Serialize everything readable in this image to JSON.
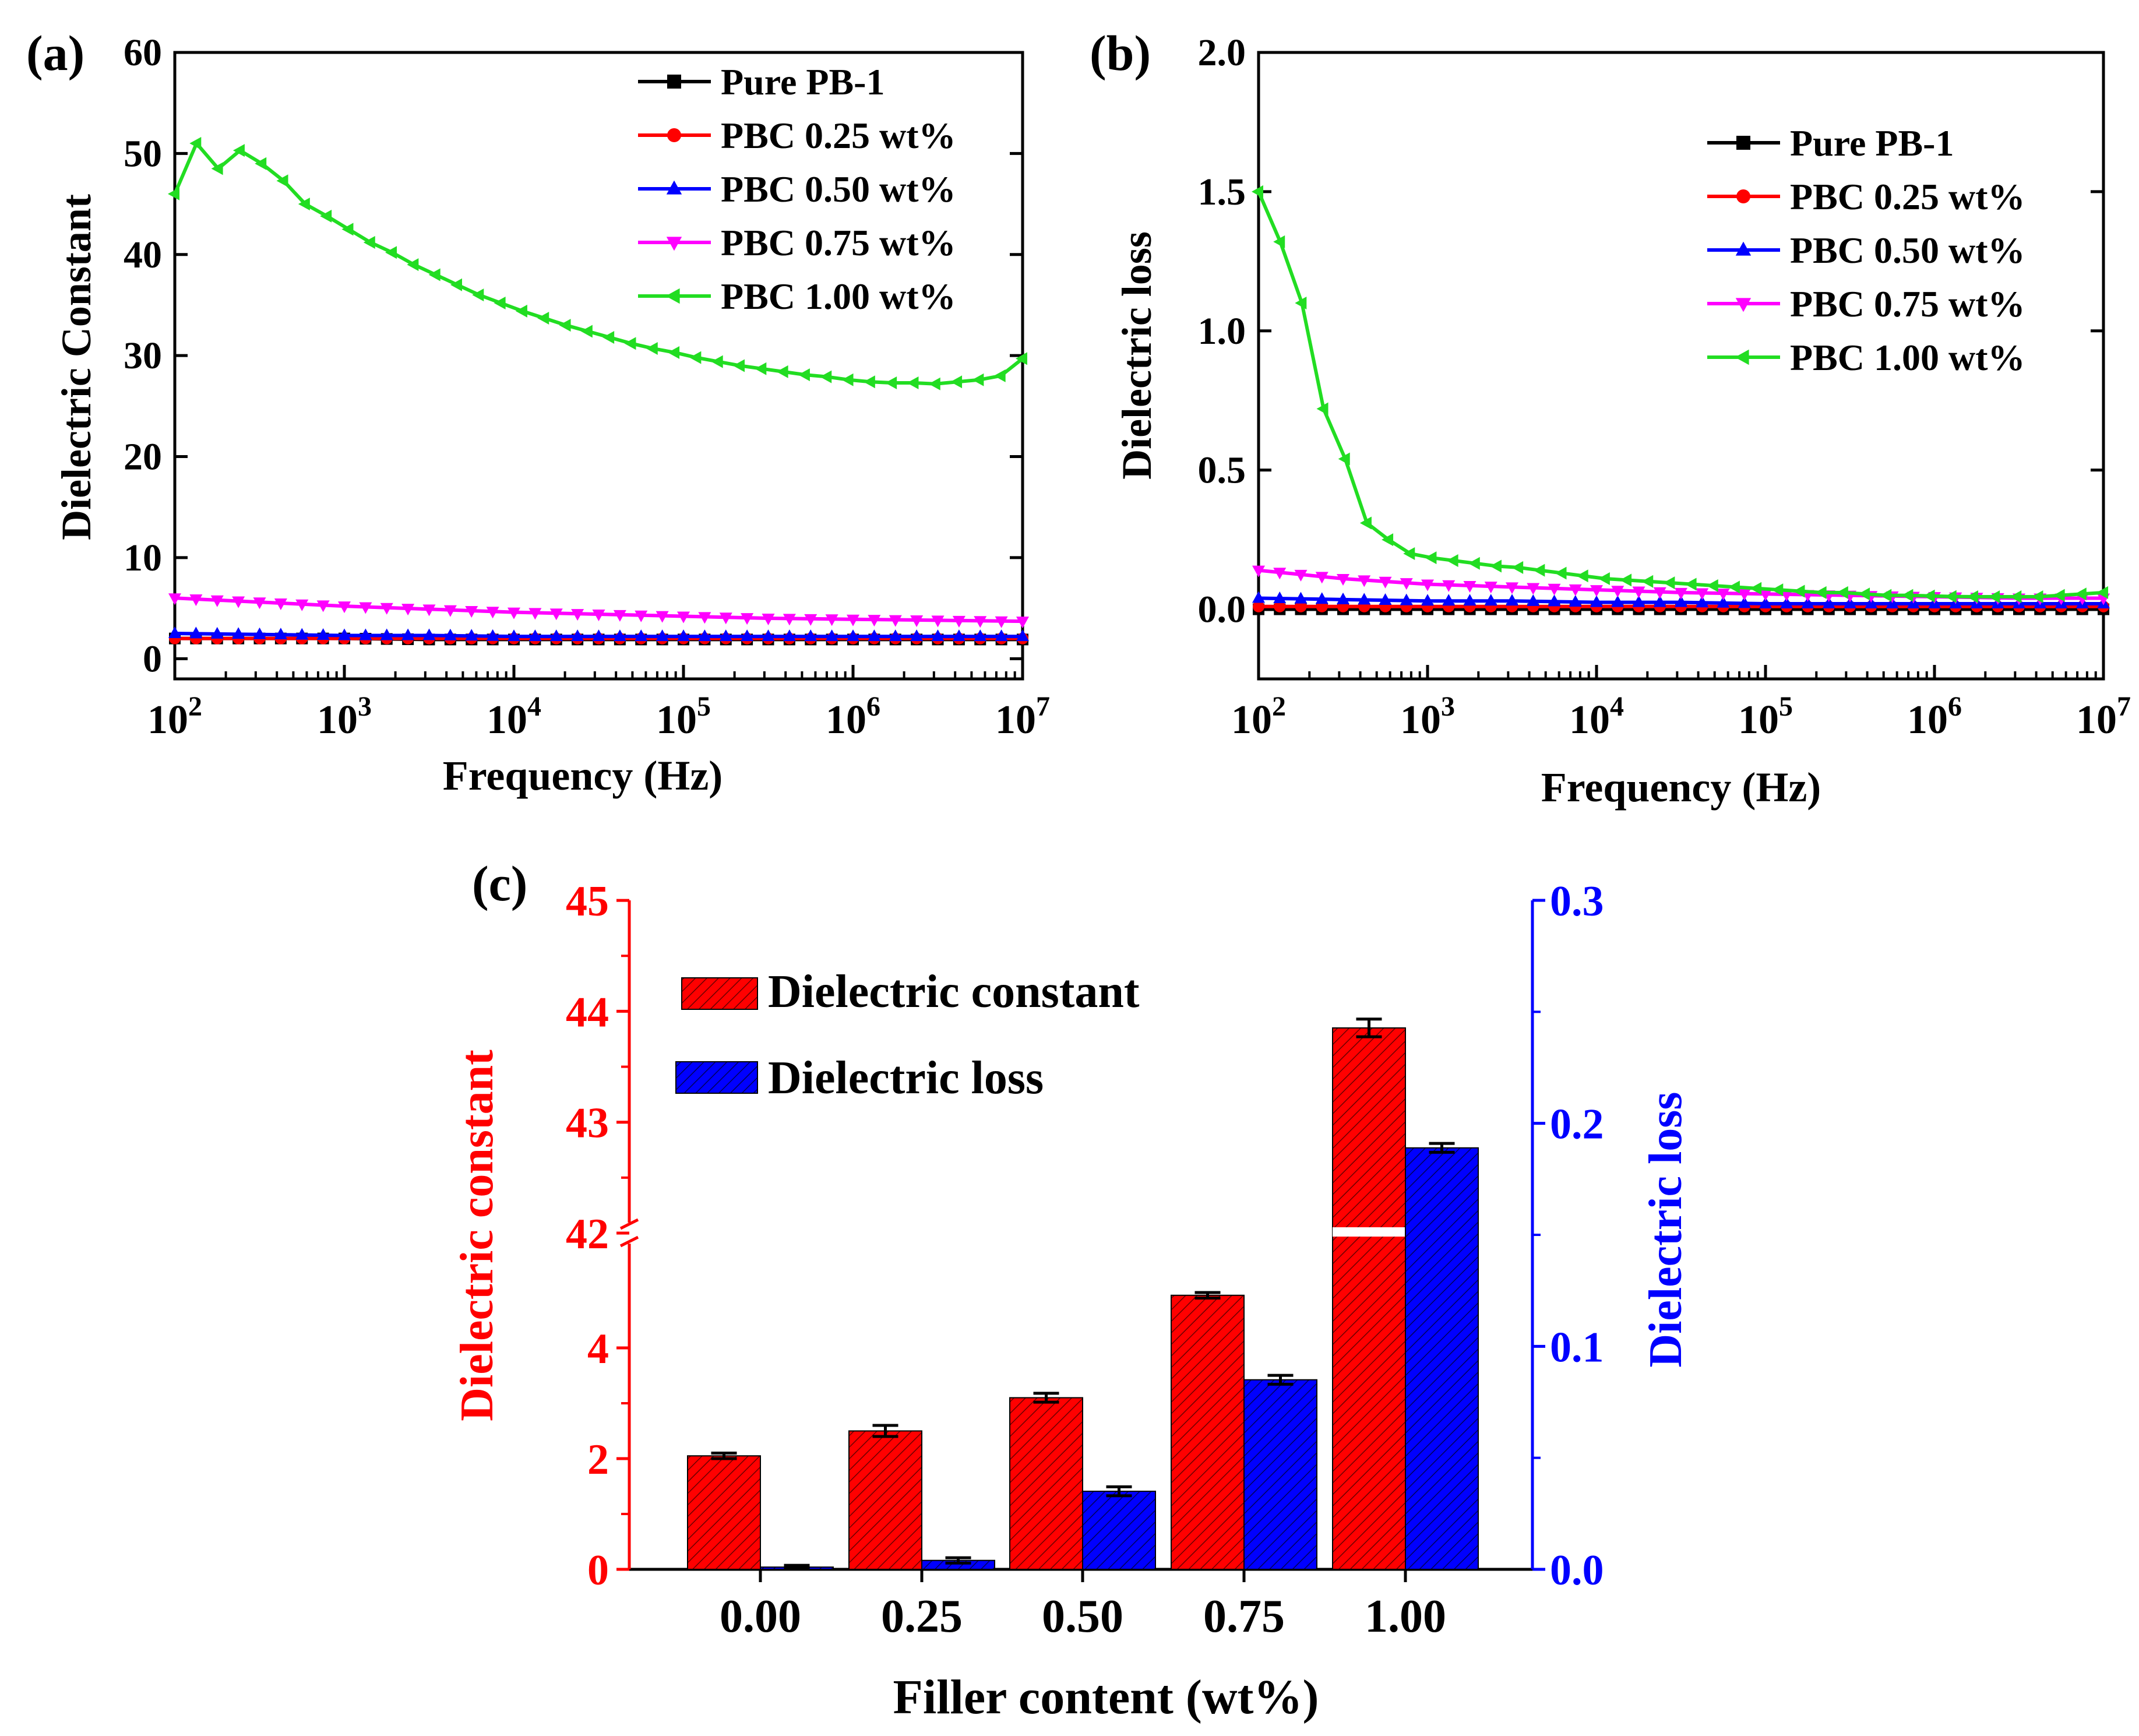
{
  "colors": {
    "black": "#000000",
    "red": "#ff0000",
    "blue": "#0000ff",
    "magenta": "#ff00ff",
    "green": "#22dd22",
    "left_axis_c": "#ff0000",
    "right_axis_c": "#0000ff"
  },
  "chart_data": [
    {
      "id": "a",
      "panel_label": "(a)",
      "type": "line",
      "xscale": "log",
      "xlabel": "Frequency (Hz)",
      "ylabel": "Dielectric Constant",
      "xlim": [
        100,
        10000000
      ],
      "ylim": [
        -2,
        60
      ],
      "xticks": [
        {
          "value": 100,
          "base": "10",
          "exp": "2"
        },
        {
          "value": 1000,
          "base": "10",
          "exp": "3"
        },
        {
          "value": 10000,
          "base": "10",
          "exp": "4"
        },
        {
          "value": 100000,
          "base": "10",
          "exp": "5"
        },
        {
          "value": 1000000,
          "base": "10",
          "exp": "6"
        },
        {
          "value": 10000000,
          "base": "10",
          "exp": "7"
        }
      ],
      "yticks": [
        {
          "value": 0,
          "label": "0"
        },
        {
          "value": 10,
          "label": "10"
        },
        {
          "value": 20,
          "label": "20"
        },
        {
          "value": 30,
          "label": "30"
        },
        {
          "value": 40,
          "label": "40"
        },
        {
          "value": 50,
          "label": "50"
        },
        {
          "value": 60,
          "label": "60"
        }
      ],
      "legend_position": "top-right",
      "series": [
        {
          "name": "Pure PB-1",
          "color": "#000000",
          "marker": "square",
          "x_log": [
            2,
            7
          ],
          "values": [
            2.0,
            2.0,
            2.0,
            1.9,
            1.9,
            1.9,
            1.9,
            1.9,
            1.9,
            1.9,
            1.9
          ]
        },
        {
          "name": "PBC 0.25 wt%",
          "color": "#ff0000",
          "marker": "circle",
          "x_log": [
            2,
            7
          ],
          "values": [
            2.0,
            2.0,
            2.0,
            2.0,
            2.0,
            2.0,
            2.0,
            2.0,
            2.0,
            2.0,
            2.0
          ]
        },
        {
          "name": "PBC 0.50 wt%",
          "color": "#0000ff",
          "marker": "triangle-up",
          "x_log": [
            2,
            7
          ],
          "values": [
            2.5,
            2.4,
            2.3,
            2.3,
            2.2,
            2.2,
            2.2,
            2.2,
            2.2,
            2.2,
            2.2
          ]
        },
        {
          "name": "PBC 0.75 wt%",
          "color": "#ff00ff",
          "marker": "triangle-down",
          "x_log": [
            2,
            7
          ],
          "values": [
            6.0,
            5.6,
            5.2,
            4.9,
            4.6,
            4.4,
            4.2,
            4.0,
            3.9,
            3.8,
            3.7
          ]
        },
        {
          "name": "PBC 1.00 wt%",
          "color": "#22dd22",
          "marker": "triangle-left",
          "x_log": [
            2,
            7
          ],
          "values": [
            46.0,
            51.0,
            48.5,
            50.3,
            49.0,
            47.3,
            45.0,
            43.8,
            42.5,
            41.2,
            40.2,
            39.0,
            38.0,
            37.0,
            36.0,
            35.2,
            34.4,
            33.7,
            33.0,
            32.4,
            31.8,
            31.2,
            30.7,
            30.3,
            29.8,
            29.4,
            29.0,
            28.7,
            28.4,
            28.1,
            27.9,
            27.6,
            27.4,
            27.3,
            27.3,
            27.2,
            27.4,
            27.6,
            28.0,
            29.7
          ]
        }
      ]
    },
    {
      "id": "b",
      "panel_label": "(b)",
      "type": "line",
      "xscale": "log",
      "xlabel": "Frequency (Hz)",
      "ylabel": "Dielectric loss",
      "xlim": [
        100,
        10000000
      ],
      "ylim": [
        -0.25,
        2.0
      ],
      "xticks": [
        {
          "value": 100,
          "base": "10",
          "exp": "2"
        },
        {
          "value": 1000,
          "base": "10",
          "exp": "3"
        },
        {
          "value": 10000,
          "base": "10",
          "exp": "4"
        },
        {
          "value": 100000,
          "base": "10",
          "exp": "5"
        },
        {
          "value": 1000000,
          "base": "10",
          "exp": "6"
        },
        {
          "value": 10000000,
          "base": "10",
          "exp": "7"
        }
      ],
      "yticks": [
        {
          "value": 0.0,
          "label": "0.0"
        },
        {
          "value": 0.5,
          "label": "0.5"
        },
        {
          "value": 1.0,
          "label": "1.0"
        },
        {
          "value": 1.5,
          "label": "1.5"
        },
        {
          "value": 2.0,
          "label": "2.0"
        }
      ],
      "legend_position": "top-right",
      "series": [
        {
          "name": "Pure PB-1",
          "color": "#000000",
          "marker": "square",
          "x_log": [
            2,
            7
          ],
          "values": [
            0.0,
            0.0,
            0.0,
            0.0,
            0.0,
            0.0,
            0.0,
            0.0,
            0.0,
            0.0,
            0.0
          ]
        },
        {
          "name": "PBC 0.25 wt%",
          "color": "#ff0000",
          "marker": "circle",
          "x_log": [
            2,
            7
          ],
          "values": [
            0.01,
            0.01,
            0.01,
            0.01,
            0.01,
            0.01,
            0.01,
            0.01,
            0.01,
            0.01,
            0.01
          ]
        },
        {
          "name": "PBC 0.50 wt%",
          "color": "#0000ff",
          "marker": "triangle-up",
          "x_log": [
            2,
            7
          ],
          "values": [
            0.04,
            0.035,
            0.03,
            0.03,
            0.025,
            0.025,
            0.02,
            0.02,
            0.02,
            0.02,
            0.02
          ]
        },
        {
          "name": "PBC 0.75 wt%",
          "color": "#ff00ff",
          "marker": "triangle-down",
          "x_log": [
            2,
            7
          ],
          "values": [
            0.14,
            0.11,
            0.09,
            0.08,
            0.07,
            0.06,
            0.055,
            0.05,
            0.045,
            0.04,
            0.04
          ]
        },
        {
          "name": "PBC 1.00 wt%",
          "color": "#22dd22",
          "marker": "triangle-left",
          "x_log": [
            2,
            7
          ],
          "values": [
            1.5,
            1.32,
            1.1,
            0.72,
            0.54,
            0.31,
            0.25,
            0.2,
            0.185,
            0.175,
            0.165,
            0.155,
            0.15,
            0.14,
            0.13,
            0.12,
            0.11,
            0.105,
            0.1,
            0.095,
            0.09,
            0.085,
            0.08,
            0.075,
            0.07,
            0.065,
            0.06,
            0.06,
            0.055,
            0.05,
            0.05,
            0.048,
            0.046,
            0.045,
            0.045,
            0.045,
            0.045,
            0.05,
            0.055,
            0.06
          ]
        }
      ]
    },
    {
      "id": "c",
      "panel_label": "(c)",
      "type": "bar",
      "xlabel": "Filler content (wt%)",
      "ylabel_left": "Dielectric constant",
      "ylabel_right": "Dielectric loss",
      "categories": [
        "0.00",
        "0.25",
        "0.50",
        "0.75",
        "1.00"
      ],
      "y_left_axis_break": {
        "lower": [
          0,
          6
        ],
        "upper": [
          42,
          45
        ],
        "break_tick": 42
      },
      "y_left_ticks": [
        {
          "value": 0,
          "label": "0"
        },
        {
          "value": 2,
          "label": "2"
        },
        {
          "value": 4,
          "label": "4"
        },
        {
          "value": 42,
          "label": "42"
        },
        {
          "value": 43,
          "label": "43"
        },
        {
          "value": 44,
          "label": "44"
        },
        {
          "value": 45,
          "label": "45"
        }
      ],
      "y_right_lim": [
        0,
        0.3
      ],
      "y_right_ticks": [
        {
          "value": 0.0,
          "label": "0.0"
        },
        {
          "value": 0.1,
          "label": "0.1"
        },
        {
          "value": 0.2,
          "label": "0.2"
        },
        {
          "value": 0.3,
          "label": "0.3"
        }
      ],
      "legend_position": "top-left",
      "series": [
        {
          "name": "Dielectric constant",
          "axis": "left",
          "color": "#ff0000",
          "values": [
            2.05,
            2.5,
            3.1,
            4.95,
            43.85
          ],
          "errors": [
            0.05,
            0.1,
            0.08,
            0.05,
            0.08
          ]
        },
        {
          "name": "Dielectric loss",
          "axis": "right",
          "color": "#0000ff",
          "values": [
            0.001,
            0.004,
            0.035,
            0.085,
            0.189
          ],
          "errors": [
            0.0008,
            0.0012,
            0.002,
            0.002,
            0.002
          ]
        }
      ]
    }
  ]
}
